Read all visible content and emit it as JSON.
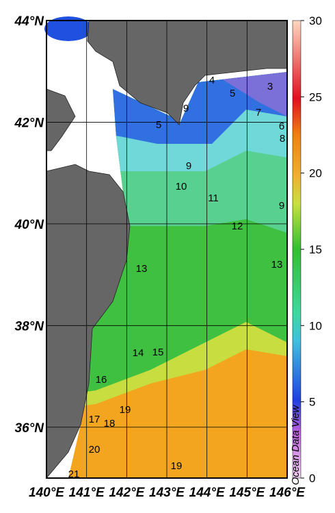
{
  "map": {
    "lon_ticks": [
      {
        "value": 140,
        "label": "140°E"
      },
      {
        "value": 141,
        "label": "141°E"
      },
      {
        "value": 142,
        "label": "142°E"
      },
      {
        "value": 143,
        "label": "143°E"
      },
      {
        "value": 144,
        "label": "144°E"
      },
      {
        "value": 145,
        "label": "145°E"
      },
      {
        "value": 146,
        "label": "146°E"
      }
    ],
    "lat_ticks": [
      {
        "value": 36,
        "label": "36°N"
      },
      {
        "value": 38,
        "label": "38°N"
      },
      {
        "value": 40,
        "label": "40°N"
      },
      {
        "value": 42,
        "label": "42°N"
      },
      {
        "value": 44,
        "label": "44°N"
      }
    ],
    "lon_range": [
      140,
      146
    ],
    "lat_range": [
      35,
      44
    ],
    "colorbar": {
      "range": [
        0,
        30
      ],
      "ticks": [
        0,
        5,
        10,
        15,
        20,
        25,
        30
      ]
    },
    "contour_labels": [
      4,
      3,
      5,
      9,
      7,
      6,
      8,
      5,
      9,
      10,
      11,
      9,
      12,
      13,
      13,
      14,
      15,
      16,
      17,
      18,
      19,
      20,
      19,
      21
    ],
    "watermark": "Ocean Data View"
  }
}
